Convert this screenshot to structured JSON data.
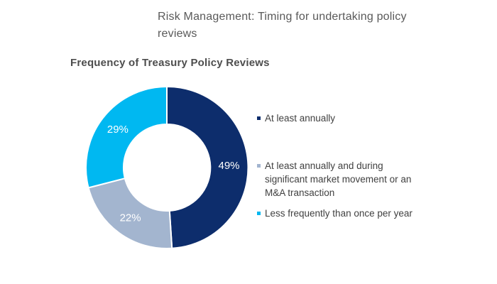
{
  "page": {
    "title": "Risk Management: Timing for undertaking policy reviews",
    "background_color": "#ffffff",
    "title_color": "#595959"
  },
  "chart_data": {
    "type": "pie",
    "subtype": "donut",
    "title": "Frequency of Treasury Policy Reviews",
    "unit": "%",
    "start_angle_deg": 0,
    "direction": "clockwise",
    "inner_radius_ratio": 0.535,
    "legend_position": "right",
    "data_label_color": "#ffffff",
    "separator_color": "#ffffff",
    "segments": [
      {
        "label": "At least annually",
        "value": 49,
        "display": "49%",
        "color": "#0D2D6C"
      },
      {
        "label": "At least annually and during significant market movement or an M&A transaction",
        "value": 22,
        "display": "22%",
        "color": "#A3B5CF"
      },
      {
        "label": "Less frequently than once per year",
        "value": 29,
        "display": "29%",
        "color": "#00B8F1"
      }
    ]
  }
}
